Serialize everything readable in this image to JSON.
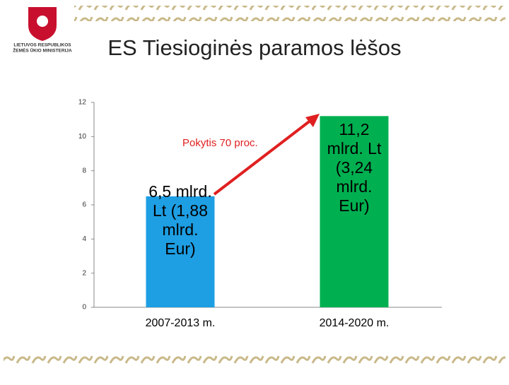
{
  "logo": {
    "lines": [
      "LIETUVOS RESPUBLIKOS",
      "ŽEMĖS ŪKIO MINISTERIJA"
    ]
  },
  "chart_data": {
    "type": "bar",
    "title": "ES Tiesioginės paramos lėšos",
    "categories": [
      "2007-2013 m.",
      "2014-2020 m."
    ],
    "values": [
      6.5,
      11.2
    ],
    "value_labels": [
      "6,5 mlrd. Lt (1,88 mlrd. Eur)",
      "11,2 mlrd. Lt (3,24 mlrd. Eur)"
    ],
    "colors": [
      "#1e9ee3",
      "#00b050"
    ],
    "ylim": [
      0,
      12
    ],
    "yticks": [
      0,
      2,
      4,
      6,
      8,
      10,
      12
    ],
    "annotation": "Pokytis 70 proc.",
    "arrow_color": "#e02020"
  }
}
